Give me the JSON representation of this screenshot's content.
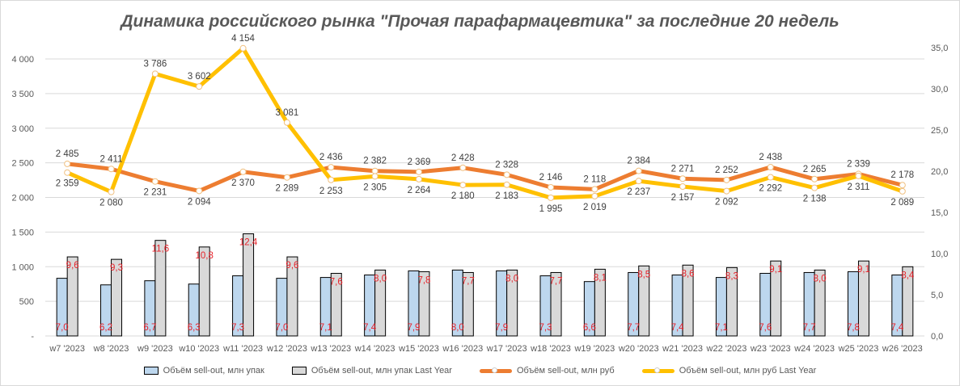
{
  "chart_data": {
    "type": "bar+line",
    "title": "Динамика российского рынка \"Прочая парафармацевтика\" за последние 20 недель",
    "categories": [
      "w7 '2023",
      "w8 '2023",
      "w9 '2023",
      "w10 '2023",
      "w11 '2023",
      "w12 '2023",
      "w13 '2023",
      "w14 '2023",
      "w15 '2023",
      "w16 '2023",
      "w17 '2023",
      "w18 '2023",
      "w19 '2023",
      "w20 '2023",
      "w21 '2023",
      "w22 '2023",
      "w23 '2023",
      "w24 '2023",
      "w25 '2023",
      "w26 '2023"
    ],
    "left_axis": {
      "ticks": [
        "-",
        "500",
        "1 000",
        "1 500",
        "2 000",
        "2 500",
        "3 000",
        "3 500",
        "4 000"
      ],
      "range": [
        0,
        4500
      ]
    },
    "right_axis": {
      "ticks": [
        "0,0",
        "5,0",
        "10,0",
        "15,0",
        "20,0",
        "25,0",
        "30,0",
        "35,0"
      ],
      "range": [
        0,
        35
      ]
    },
    "series": [
      {
        "name": "Объём sell-out, млн упак",
        "type": "bar",
        "axis": "right",
        "color": "#bdd7ee",
        "values": [
          7.0,
          6.2,
          6.7,
          6.3,
          7.3,
          7.0,
          7.1,
          7.4,
          7.9,
          8.0,
          7.9,
          7.3,
          6.6,
          7.7,
          7.4,
          7.1,
          7.6,
          7.7,
          7.8,
          7.4
        ],
        "labels": [
          "7,0",
          "6,2",
          "6,7",
          "6,3",
          "7,3",
          "7,0",
          "7,1",
          "7,4",
          "7,9",
          "8,0",
          "7,9",
          "7,3",
          "6,6",
          "7,7",
          "7,4",
          "7,1",
          "7,6",
          "7,7",
          "7,8",
          "7,4"
        ]
      },
      {
        "name": "Объём sell-out, млн упак Last Year",
        "type": "bar",
        "axis": "right",
        "color": "#d9d9d9",
        "values": [
          9.6,
          9.3,
          11.6,
          10.8,
          12.4,
          9.6,
          7.6,
          8.0,
          7.8,
          7.7,
          8.0,
          7.7,
          8.1,
          8.5,
          8.6,
          8.3,
          9.1,
          8.0,
          9.1,
          8.4
        ],
        "labels": [
          "9,6",
          "9,3",
          "11,6",
          "10,8",
          "12,4",
          "9,6",
          "7,6",
          "8,0",
          "7,8",
          "7,7",
          "8,0",
          "7,7",
          "8,1",
          "8,5",
          "8,6",
          "8,3",
          "9,1",
          "8,0",
          "9,1",
          "8,4"
        ]
      },
      {
        "name": "Объём sell-out, млн руб",
        "type": "line",
        "axis": "left",
        "color": "#ed7d31",
        "values": [
          2485,
          2411,
          2231,
          2094,
          2370,
          2289,
          2436,
          2382,
          2369,
          2428,
          2328,
          2146,
          2118,
          2384,
          2271,
          2252,
          2438,
          2265,
          2339,
          2178
        ],
        "labels": [
          "2 485",
          "2 411",
          "2 231",
          "2 094",
          "2 370",
          "2 289",
          "2 436",
          "2 382",
          "2 369",
          "2 428",
          "2 328",
          "2 146",
          "2 118",
          "2 384",
          "2 271",
          "2 252",
          "2 438",
          "2 265",
          "2 339",
          "2 178"
        ]
      },
      {
        "name": "Объём sell-out, млн руб Last Year",
        "type": "line",
        "axis": "left",
        "color": "#ffc000",
        "values": [
          2359,
          2080,
          3786,
          3602,
          4154,
          3081,
          2253,
          2305,
          2264,
          2180,
          2183,
          1995,
          2019,
          2237,
          2157,
          2092,
          2292,
          2138,
          2311,
          2089
        ],
        "labels": [
          "2 359",
          "2 080",
          "3 786",
          "3 602",
          "4 154",
          "3 081",
          "2 253",
          "2 305",
          "2 264",
          "2 180",
          "2 183",
          "1 995",
          "2 019",
          "2 237",
          "2 157",
          "2 092",
          "2 292",
          "2 138",
          "2 311",
          "2 089"
        ]
      }
    ],
    "grid": true,
    "legend_position": "bottom"
  }
}
